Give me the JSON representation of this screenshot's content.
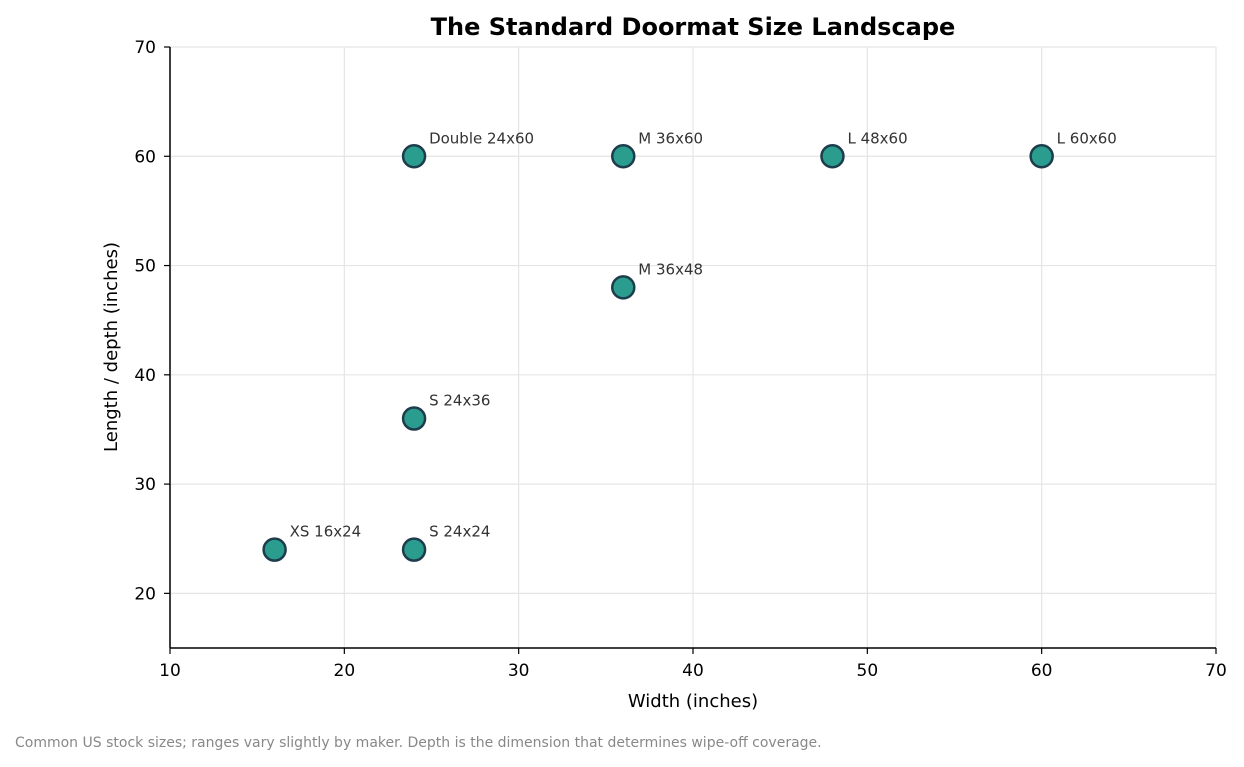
{
  "chart_data": {
    "type": "scatter",
    "title": "The Standard Doormat Size Landscape",
    "xlabel": "Width (inches)",
    "ylabel": "Length / depth (inches)",
    "xlim": [
      10,
      70
    ],
    "ylim": [
      15,
      70
    ],
    "xticks": [
      10,
      20,
      30,
      40,
      50,
      60,
      70
    ],
    "yticks": [
      20,
      30,
      40,
      50,
      60,
      70
    ],
    "grid": true,
    "points": [
      {
        "label": "XS 16x24",
        "x": 16,
        "y": 24
      },
      {
        "label": "S 24x24",
        "x": 24,
        "y": 24
      },
      {
        "label": "S 24x36",
        "x": 24,
        "y": 36
      },
      {
        "label": "M 36x48",
        "x": 36,
        "y": 48
      },
      {
        "label": "M 36x60",
        "x": 36,
        "y": 60
      },
      {
        "label": "L 48x60",
        "x": 48,
        "y": 60
      },
      {
        "label": "L 60x60",
        "x": 60,
        "y": 60
      },
      {
        "label": "Double 24x60",
        "x": 24,
        "y": 60
      }
    ],
    "colors": {
      "marker_fill": "#2a9d8f",
      "marker_edge": "#1d3c4c",
      "grid": "#e5e5e5",
      "label": "#333333"
    }
  },
  "caption": "Common US stock sizes; ranges vary slightly by maker. Depth is the dimension that determines wipe-off coverage."
}
